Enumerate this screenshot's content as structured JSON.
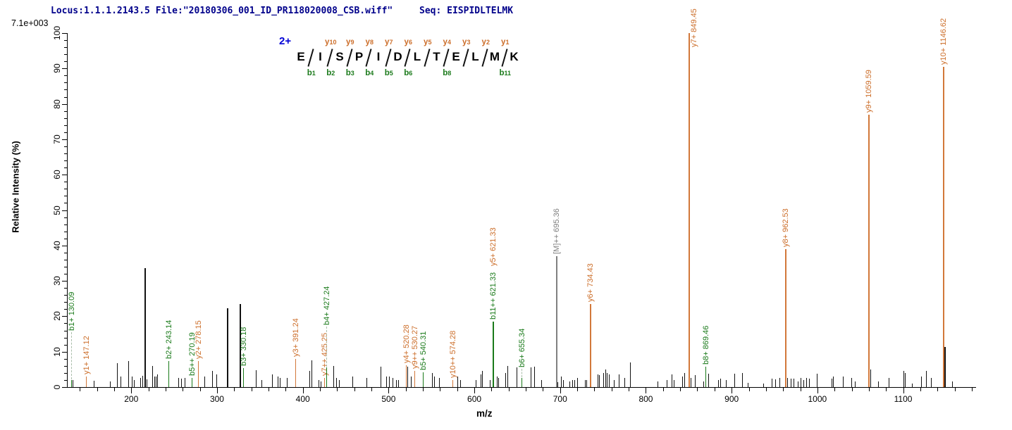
{
  "header": {
    "locus_file": "Locus:1.1.1.2143.5 File:\"20180306_001_ID_PR118020008_CSB.wiff\"",
    "seq_label": "Seq: EISPIDLTELMK",
    "intensity_scale": "7.1e+003"
  },
  "peptide": {
    "charge": "2+",
    "residues": [
      "E",
      "I",
      "S",
      "P",
      "I",
      "D",
      "L",
      "T",
      "E",
      "L",
      "M",
      "K"
    ],
    "cuts": [
      {
        "after": 1,
        "b": "b1"
      },
      {
        "after": 2,
        "y": "y10",
        "b": "b2"
      },
      {
        "after": 3,
        "y": "y9",
        "b": "b3"
      },
      {
        "after": 4,
        "y": "y8",
        "b": "b4"
      },
      {
        "after": 5,
        "y": "y7",
        "b": "b5"
      },
      {
        "after": 6,
        "y": "y6",
        "b": "b6"
      },
      {
        "after": 7,
        "y": "y5"
      },
      {
        "after": 8,
        "y": "y4",
        "b": "b8"
      },
      {
        "after": 9,
        "y": "y3"
      },
      {
        "after": 10,
        "y": "y2"
      },
      {
        "after": 11,
        "y": "y1",
        "b": "b11"
      }
    ]
  },
  "axes": {
    "x_label": "m/z",
    "y_label": "Relative  Intensity (%)",
    "x_min": 125,
    "x_max": 1185,
    "x_tick_values": [
      200,
      300,
      400,
      500,
      600,
      700,
      800,
      900,
      1000,
      1100
    ],
    "x_minor_step": 20,
    "y_tick_values": [
      0,
      10,
      20,
      30,
      40,
      50,
      60,
      70,
      80,
      90,
      100
    ],
    "y_minor_step": 2
  },
  "colors": {
    "y_ion": "#cc6e2a",
    "y_line": "#d2783a",
    "b_ion": "#1a7a1a",
    "precursor": "#808080",
    "header_text": "#00008b",
    "charge": "#0000d6",
    "noise": "#111111"
  },
  "chart_data": {
    "type": "bar",
    "subtype": "ms2-fragmentation-spectrum",
    "title": "",
    "xlabel": "m/z",
    "ylabel": "Relative  Intensity (%)",
    "xlim": [
      125,
      1185
    ],
    "ylim": [
      0,
      100
    ],
    "labeled_peaks": [
      {
        "label": "b1+ 130.09",
        "mz": 130.09,
        "pct": 2,
        "ion": "b",
        "label_base_pct": 16,
        "leader": true
      },
      {
        "label": "y1+ 147.12",
        "mz": 147.12,
        "pct": 3,
        "ion": "y"
      },
      {
        "label": "b2+ 243.14",
        "mz": 243.14,
        "pct": 7.4,
        "ion": "b"
      },
      {
        "label": "b5++ 270.19",
        "mz": 270.19,
        "pct": 2.5,
        "ion": "b"
      },
      {
        "label": "y2+ 278.15",
        "mz": 278.15,
        "pct": 7.4,
        "ion": "y"
      },
      {
        "label": "b3+ 330.18",
        "mz": 330.18,
        "pct": 5.4,
        "ion": "b"
      },
      {
        "label": "y3+ 391.24",
        "mz": 391.24,
        "pct": 8,
        "ion": "y"
      },
      {
        "label": "y7++ 425.25",
        "mz": 425.25,
        "pct": 2.6,
        "ion": "y"
      },
      {
        "label": "b4+ 427.24",
        "mz": 427.24,
        "pct": 5.6,
        "ion": "b",
        "label_base_pct": 17.5,
        "leader": true
      },
      {
        "label": "y4+ 520.28",
        "mz": 520.28,
        "pct": 6.2,
        "ion": "y"
      },
      {
        "label": "y9++ 530.27",
        "mz": 530.27,
        "pct": 4.5,
        "ion": "y"
      },
      {
        "label": "b5+ 540.31",
        "mz": 540.31,
        "pct": 4.2,
        "ion": "b"
      },
      {
        "label": "y10++ 574.28",
        "mz": 574.28,
        "pct": 2,
        "ion": "y"
      },
      {
        "label": "b11++ 621.33",
        "mz": 621.33,
        "pct": 18.5,
        "ion": "b",
        "extra_labels": [
          {
            "label": "y5+ 621.33",
            "ion": "y"
          }
        ]
      },
      {
        "label": "b6+ 655.34",
        "mz": 655.34,
        "pct": 2.5,
        "ion": "b",
        "label_base_pct": 5.5,
        "leader": true
      },
      {
        "label": "[M]++ 695.36",
        "mz": 695.36,
        "pct": 37,
        "ion": "M"
      },
      {
        "label": "y6+ 734.43",
        "mz": 734.43,
        "pct": 23.5,
        "ion": "y"
      },
      {
        "label": "y7+ 849.45",
        "mz": 849.45,
        "pct": 100,
        "ion": "y"
      },
      {
        "label": "b8+ 869.46",
        "mz": 869.46,
        "pct": 5.7,
        "ion": "b"
      },
      {
        "label": "y8+ 962.53",
        "mz": 962.53,
        "pct": 39,
        "ion": "y"
      },
      {
        "label": "y9+ 1059.59",
        "mz": 1059.59,
        "pct": 77,
        "ion": "y"
      },
      {
        "label": "y10+ 1146.62",
        "mz": 1146.62,
        "pct": 90.5,
        "ion": "y"
      }
    ],
    "noise_peaks": [
      [
        131.5,
        2
      ],
      [
        156,
        1.7
      ],
      [
        175,
        1.5
      ],
      [
        183,
        6.7
      ],
      [
        187.5,
        3
      ],
      [
        196.5,
        7.4
      ],
      [
        200.5,
        3
      ],
      [
        203,
        2
      ],
      [
        210.5,
        2.5
      ],
      [
        213,
        3.2
      ],
      [
        215,
        33.5
      ],
      [
        218,
        2.2
      ],
      [
        224.5,
        6
      ],
      [
        226.8,
        3
      ],
      [
        228.6,
        3
      ],
      [
        230.5,
        3.5
      ],
      [
        255,
        2.5
      ],
      [
        258,
        2.4
      ],
      [
        262,
        2.5
      ],
      [
        285,
        3
      ],
      [
        294,
        4.5
      ],
      [
        299,
        3.5
      ],
      [
        311.9,
        22.2
      ],
      [
        326.4,
        23.5
      ],
      [
        345,
        4.7
      ],
      [
        352,
        2
      ],
      [
        364,
        3.5
      ],
      [
        371,
        3
      ],
      [
        373.5,
        2.5
      ],
      [
        381,
        2.5
      ],
      [
        408,
        4.5
      ],
      [
        410.5,
        7.5
      ],
      [
        418,
        2
      ],
      [
        421,
        1.5
      ],
      [
        436,
        6
      ],
      [
        438.5,
        2.6
      ],
      [
        442,
        2
      ],
      [
        458,
        3
      ],
      [
        474,
        2.5
      ],
      [
        490.5,
        5.7
      ],
      [
        497.5,
        3
      ],
      [
        500.3,
        3
      ],
      [
        504.4,
        2.5
      ],
      [
        508.5,
        2
      ],
      [
        511,
        2
      ],
      [
        521.5,
        5.8
      ],
      [
        526,
        3
      ],
      [
        551,
        4
      ],
      [
        553.5,
        3
      ],
      [
        559,
        2.5
      ],
      [
        580.5,
        3
      ],
      [
        583.7,
        2
      ],
      [
        601.5,
        2
      ],
      [
        607,
        3.5
      ],
      [
        609.2,
        4.5
      ],
      [
        617.9,
        2
      ],
      [
        626,
        3
      ],
      [
        628,
        2.5
      ],
      [
        636.5,
        4
      ],
      [
        638.4,
        6
      ],
      [
        649.3,
        5.5
      ],
      [
        665.3,
        5.5
      ],
      [
        670,
        5.7
      ],
      [
        678,
        2
      ],
      [
        696.5,
        1.3
      ],
      [
        701.4,
        3
      ],
      [
        703.6,
        2
      ],
      [
        711,
        1.5
      ],
      [
        714,
        2
      ],
      [
        716.5,
        2
      ],
      [
        719.8,
        2.5
      ],
      [
        728.8,
        2
      ],
      [
        730.5,
        2
      ],
      [
        743.8,
        3.5
      ],
      [
        745.2,
        3.4
      ],
      [
        750.7,
        4
      ],
      [
        752.8,
        5
      ],
      [
        754.8,
        4
      ],
      [
        756.5,
        3.5
      ],
      [
        763,
        2
      ],
      [
        768.4,
        3.5
      ],
      [
        774.7,
        2.5
      ],
      [
        781.6,
        7
      ],
      [
        813.6,
        1.5
      ],
      [
        824.6,
        2
      ],
      [
        830,
        3.6
      ],
      [
        832.8,
        2
      ],
      [
        842.3,
        3
      ],
      [
        845.1,
        4
      ],
      [
        851.9,
        2.5
      ],
      [
        857.4,
        3.3
      ],
      [
        867,
        1.5
      ],
      [
        872.5,
        3.8
      ],
      [
        884.2,
        2
      ],
      [
        887,
        2.3
      ],
      [
        893,
        2
      ],
      [
        903.4,
        3.8
      ],
      [
        912.2,
        4
      ],
      [
        919,
        1.2
      ],
      [
        936.7,
        1
      ],
      [
        946.4,
        2.3
      ],
      [
        950.5,
        2.2
      ],
      [
        955.4,
        2.6
      ],
      [
        964.6,
        2.5
      ],
      [
        968.8,
        2.3
      ],
      [
        972,
        2.3
      ],
      [
        977.2,
        1.5
      ],
      [
        980.1,
        2.6
      ],
      [
        983.4,
        2
      ],
      [
        987,
        2.5
      ],
      [
        990.2,
        2.3
      ],
      [
        999.3,
        3.8
      ],
      [
        1016.3,
        2.3
      ],
      [
        1018.2,
        3
      ],
      [
        1029.4,
        3
      ],
      [
        1039.6,
        2.6
      ],
      [
        1044,
        1.5
      ],
      [
        1062,
        5
      ],
      [
        1071,
        1.5
      ],
      [
        1083.4,
        2.5
      ],
      [
        1100.6,
        4.5
      ],
      [
        1102.2,
        4
      ],
      [
        1110.4,
        1
      ],
      [
        1121,
        3
      ],
      [
        1126.8,
        4.5
      ],
      [
        1132.5,
        2.5
      ],
      [
        1147.8,
        11.3
      ],
      [
        1157.3,
        1.5
      ]
    ]
  }
}
